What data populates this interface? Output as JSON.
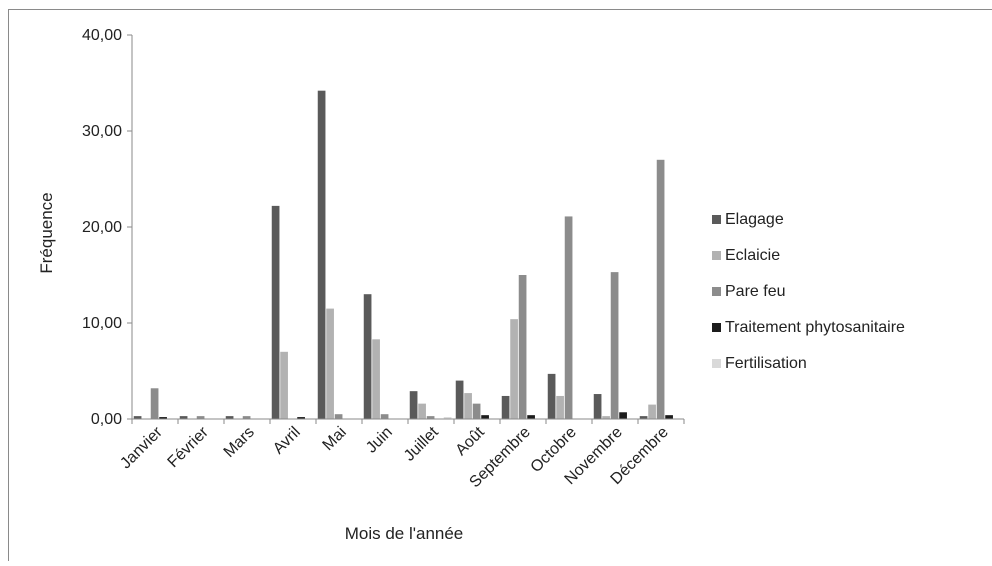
{
  "chart_data": {
    "type": "bar",
    "title": "",
    "xlabel": "Mois de l'année",
    "ylabel": "Fréquence",
    "ylim": [
      0,
      40
    ],
    "yticks": [
      "0,00",
      "10,00",
      "20,00",
      "30,00",
      "40,00"
    ],
    "grid": false,
    "legend_position": "right",
    "categories": [
      "Janvier",
      "Février",
      "Mars",
      "Avril",
      "Mai",
      "Juin",
      "Juillet",
      "Août",
      "Septembre",
      "Octobre",
      "Novembre",
      "Décembre"
    ],
    "series": [
      {
        "name": "Elagage",
        "color": "#5a5a5a",
        "values": [
          0.3,
          0.3,
          0.3,
          22.2,
          34.2,
          13.0,
          2.9,
          4.0,
          2.4,
          4.7,
          2.6,
          0.3
        ]
      },
      {
        "name": "Eclaicie",
        "color": "#b2b2b2",
        "values": [
          0.0,
          0.0,
          0.0,
          7.0,
          11.5,
          8.3,
          1.6,
          2.7,
          10.4,
          2.4,
          0.3,
          1.5
        ]
      },
      {
        "name": "Pare feu",
        "color": "#8c8c8c",
        "values": [
          3.2,
          0.3,
          0.3,
          0.0,
          0.5,
          0.5,
          0.3,
          1.6,
          15.0,
          21.1,
          15.3,
          27.0
        ]
      },
      {
        "name": "Traitement phytosanitaire",
        "color": "#1c1c1c",
        "values": [
          0.2,
          0.0,
          0.0,
          0.2,
          0.0,
          0.0,
          0.0,
          0.4,
          0.4,
          0.0,
          0.7,
          0.4
        ]
      },
      {
        "name": "Fertilisation",
        "color": "#d9d9d9",
        "values": [
          0.0,
          0.0,
          0.0,
          0.0,
          0.0,
          0.0,
          0.2,
          0.0,
          0.0,
          0.0,
          0.0,
          0.0
        ]
      }
    ]
  }
}
